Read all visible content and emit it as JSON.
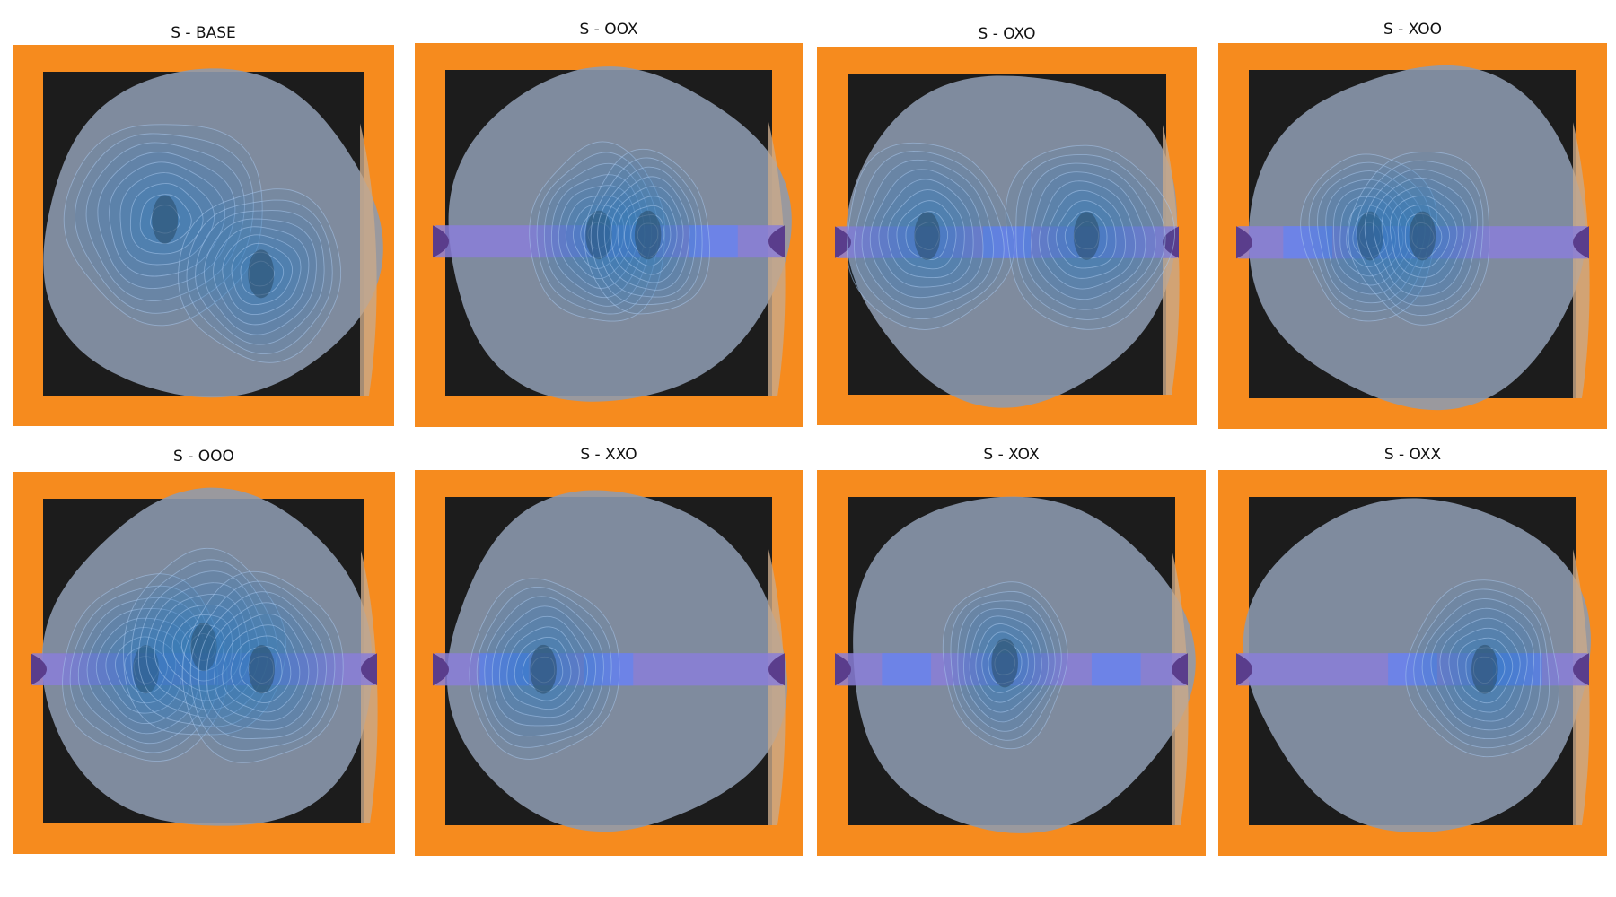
{
  "figure": {
    "panels": [
      {
        "title": "S - BASE",
        "doors": []
      },
      {
        "title": "S - OOX",
        "doors": [
          "open",
          "open",
          "closed"
        ]
      },
      {
        "title": "S - OXO",
        "doors": [
          "open",
          "closed",
          "open"
        ]
      },
      {
        "title": "S - XOO",
        "doors": [
          "closed",
          "open",
          "open"
        ]
      },
      {
        "title": "S - OOO",
        "doors": [
          "open",
          "open",
          "open"
        ]
      },
      {
        "title": "S - XXO",
        "doors": [
          "closed",
          "closed",
          "open"
        ]
      },
      {
        "title": "S - XOX",
        "doors": [
          "closed",
          "open",
          "closed"
        ]
      },
      {
        "title": "S - OXX",
        "doors": [
          "open",
          "closed",
          "closed"
        ]
      }
    ]
  },
  "chart_data": {
    "type": "heatmap",
    "description_free": true,
    "grid": {
      "rows": 2,
      "cols": 4
    },
    "panels": [
      {
        "title": "S - BASE",
        "hotspots": [
          {
            "x": 0.38,
            "y": 0.45,
            "w": 1.0
          },
          {
            "x": 0.68,
            "y": 0.62,
            "w": 0.6
          }
        ],
        "spread": [
          0.3,
          0.3
        ]
      },
      {
        "title": "S - OOX",
        "hotspots": [
          {
            "x": 0.47,
            "y": 0.5,
            "w": 1.0
          },
          {
            "x": 0.62,
            "y": 0.5,
            "w": 0.8
          }
        ],
        "spread": [
          0.2,
          0.26
        ]
      },
      {
        "title": "S - OXO",
        "hotspots": [
          {
            "x": 0.25,
            "y": 0.5,
            "w": 1.0
          },
          {
            "x": 0.75,
            "y": 0.5,
            "w": 1.0
          }
        ],
        "spread": [
          0.25,
          0.28
        ]
      },
      {
        "title": "S - XOO",
        "hotspots": [
          {
            "x": 0.37,
            "y": 0.5,
            "w": 0.9
          },
          {
            "x": 0.53,
            "y": 0.5,
            "w": 1.0
          }
        ],
        "spread": [
          0.2,
          0.26
        ]
      },
      {
        "title": "S - OOO",
        "hotspots": [
          {
            "x": 0.32,
            "y": 0.52,
            "w": 1.0
          },
          {
            "x": 0.5,
            "y": 0.45,
            "w": 1.0
          },
          {
            "x": 0.68,
            "y": 0.52,
            "w": 1.0
          }
        ],
        "spread": [
          0.24,
          0.28
        ]
      },
      {
        "title": "S - XXO",
        "hotspots": [
          {
            "x": 0.3,
            "y": 0.52,
            "w": 1.0
          }
        ],
        "spread": [
          0.22,
          0.26
        ]
      },
      {
        "title": "S - XOX",
        "hotspots": [
          {
            "x": 0.48,
            "y": 0.5,
            "w": 1.0
          }
        ],
        "spread": [
          0.18,
          0.24
        ]
      },
      {
        "title": "S - OXX",
        "hotspots": [
          {
            "x": 0.72,
            "y": 0.52,
            "w": 1.0
          }
        ],
        "spread": [
          0.22,
          0.26
        ]
      }
    ],
    "colors": {
      "frame": "#f68b1e",
      "floor": "#1c1c1c",
      "overlay": "#8d9bb0",
      "contour": "#2f7fc0",
      "corridor": "#8a7ed8",
      "door": "#6b83e8",
      "edge": "#5a3d8c"
    }
  }
}
